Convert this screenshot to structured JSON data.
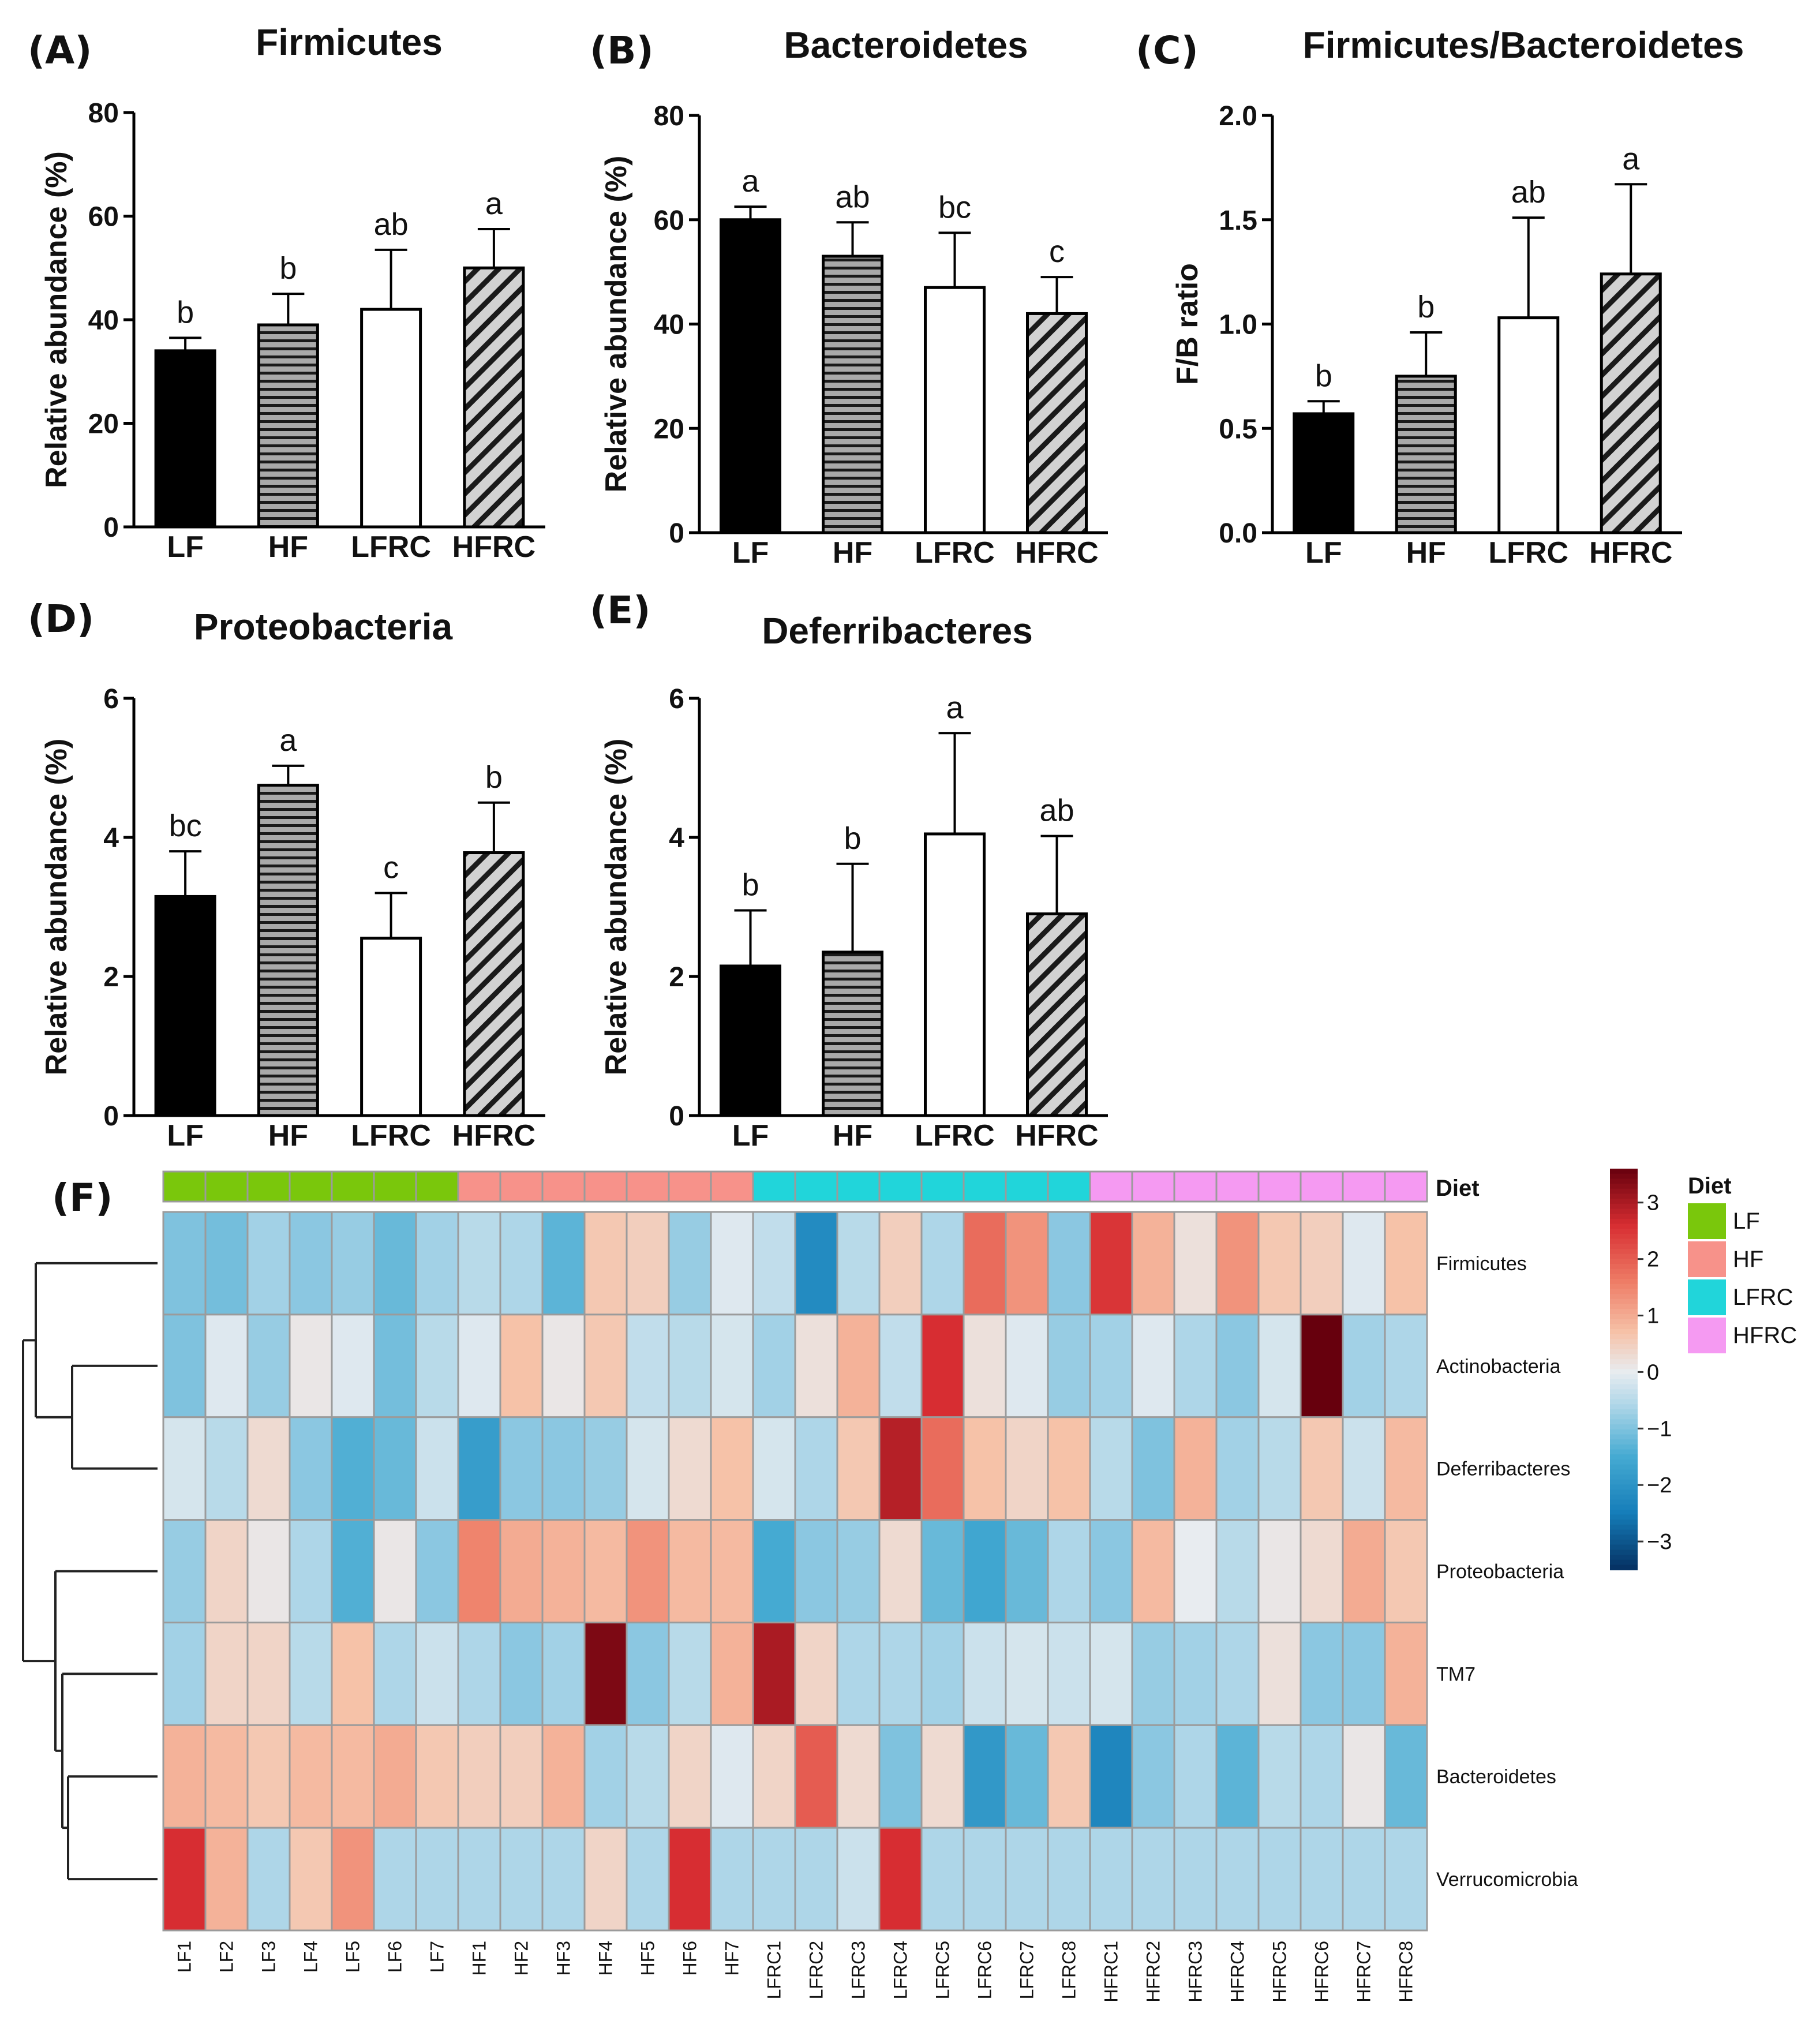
{
  "chart_data": [
    {
      "type": "bar",
      "panel": "(A)",
      "title": "Firmicutes",
      "ylabel": "Relative abundance (%)",
      "ylim": [
        0,
        80
      ],
      "yticks": [
        "0",
        "20",
        "40",
        "60",
        "80"
      ],
      "categories": [
        "LF",
        "HF",
        "LFRC",
        "HFRC"
      ],
      "values": [
        34,
        39,
        42,
        50
      ],
      "errors": [
        2.5,
        6,
        11.5,
        7.5
      ],
      "letters": [
        "b",
        "b",
        "ab",
        "a"
      ]
    },
    {
      "type": "bar",
      "panel": "(B)",
      "title": "Bacteroidetes",
      "ylabel": "Relative abundance (%)",
      "ylim": [
        0,
        80
      ],
      "yticks": [
        "0",
        "20",
        "40",
        "60",
        "80"
      ],
      "categories": [
        "LF",
        "HF",
        "LFRC",
        "HFRC"
      ],
      "values": [
        60,
        53,
        47,
        42
      ],
      "errors": [
        2.5,
        6.5,
        10.5,
        7
      ],
      "letters": [
        "a",
        "ab",
        "bc",
        "c"
      ]
    },
    {
      "type": "bar",
      "panel": "(C)",
      "title": "Firmicutes/Bacteroidetes",
      "ylabel": "F/B ratio",
      "ylim": [
        0,
        2.0
      ],
      "yticks": [
        "0.0",
        "0.5",
        "1.0",
        "1.5",
        "2.0"
      ],
      "categories": [
        "LF",
        "HF",
        "LFRC",
        "HFRC"
      ],
      "values": [
        0.57,
        0.75,
        1.03,
        1.24
      ],
      "errors": [
        0.06,
        0.21,
        0.48,
        0.43
      ],
      "letters": [
        "b",
        "b",
        "ab",
        "a"
      ]
    },
    {
      "type": "bar",
      "panel": "(D)",
      "title": "Proteobacteria",
      "ylabel": "Relative abundance (%)",
      "ylim": [
        0,
        6
      ],
      "yticks": [
        "0",
        "2",
        "4",
        "6"
      ],
      "categories": [
        "LF",
        "HF",
        "LFRC",
        "HFRC"
      ],
      "values": [
        3.15,
        4.75,
        2.55,
        3.78
      ],
      "errors": [
        0.65,
        0.28,
        0.65,
        0.72
      ],
      "letters": [
        "bc",
        "a",
        "c",
        "b"
      ]
    },
    {
      "type": "bar",
      "panel": "(E)",
      "title": "Deferribacteres",
      "ylabel": "Relative abundance (%)",
      "ylim": [
        0,
        6
      ],
      "yticks": [
        "0",
        "2",
        "4",
        "6"
      ],
      "categories": [
        "LF",
        "HF",
        "LFRC",
        "HFRC"
      ],
      "values": [
        2.15,
        2.35,
        4.05,
        2.9
      ],
      "errors": [
        0.8,
        1.27,
        1.45,
        1.12
      ],
      "letters": [
        "b",
        "b",
        "a",
        "ab"
      ]
    },
    {
      "type": "heatmap",
      "panel": "(F)",
      "annotation_title": "Diet",
      "columns": [
        "LF1",
        "LF2",
        "LF3",
        "LF4",
        "LF5",
        "LF6",
        "LF7",
        "HF1",
        "HF2",
        "HF3",
        "HF4",
        "HF5",
        "HF6",
        "HF7",
        "LFRC1",
        "LFRC2",
        "LFRC3",
        "LFRC4",
        "LFRC5",
        "LFRC6",
        "LFRC7",
        "LFRC8",
        "HFRC1",
        "HFRC2",
        "HFRC3",
        "HFRC4",
        "HFRC5",
        "HFRC6",
        "HFRC7",
        "HFRC8"
      ],
      "column_groups": [
        "LF",
        "LF",
        "LF",
        "LF",
        "LF",
        "LF",
        "LF",
        "HF",
        "HF",
        "HF",
        "HF",
        "HF",
        "HF",
        "HF",
        "LFRC",
        "LFRC",
        "LFRC",
        "LFRC",
        "LFRC",
        "LFRC",
        "LFRC",
        "LFRC",
        "HFRC",
        "HFRC",
        "HFRC",
        "HFRC",
        "HFRC",
        "HFRC",
        "HFRC",
        "HFRC"
      ],
      "rows": [
        "Firmicutes",
        "Actinobacteria",
        "Deferribacteres",
        "Proteobacteria",
        "TM7",
        "Bacteroidetes",
        "Verrucomicrobia"
      ],
      "values": [
        [
          -1.0,
          -1.1,
          -0.7,
          -0.9,
          -0.8,
          -1.2,
          -0.7,
          -0.5,
          -0.6,
          -1.3,
          0.6,
          0.5,
          -0.8,
          -0.1,
          -0.4,
          -2.2,
          -0.5,
          0.5,
          -0.6,
          1.8,
          1.3,
          -0.9,
          2.5,
          0.9,
          0.2,
          1.3,
          0.6,
          0.5,
          -0.1,
          0.7
        ],
        [
          -1.0,
          -0.1,
          -0.8,
          0.1,
          -0.1,
          -1.1,
          -0.5,
          -0.1,
          0.7,
          0.1,
          0.6,
          -0.4,
          -0.5,
          -0.2,
          -0.7,
          0.2,
          0.9,
          -0.4,
          2.6,
          0.2,
          -0.1,
          -0.8,
          -0.7,
          -0.1,
          -0.6,
          -0.9,
          -0.2,
          3.6,
          -0.7,
          -0.6
        ],
        [
          -0.2,
          -0.5,
          0.3,
          -0.9,
          -1.4,
          -1.2,
          -0.3,
          -1.8,
          -0.9,
          -0.9,
          -0.8,
          -0.2,
          0.3,
          0.7,
          -0.2,
          -0.6,
          0.6,
          2.9,
          1.8,
          0.7,
          0.4,
          0.7,
          -0.5,
          -1.0,
          0.9,
          -0.7,
          -0.5,
          0.6,
          -0.3,
          0.8
        ],
        [
          -0.8,
          0.4,
          0.1,
          -0.6,
          -1.4,
          0.1,
          -0.9,
          1.5,
          1.0,
          0.9,
          0.8,
          1.3,
          0.8,
          0.8,
          -1.5,
          -0.9,
          -0.8,
          0.3,
          -1.2,
          -1.6,
          -1.2,
          -0.6,
          -0.9,
          0.8,
          0.0,
          -0.5,
          0.1,
          0.3,
          1.0,
          0.6
        ],
        [
          -0.7,
          0.4,
          0.4,
          -0.5,
          0.7,
          -0.6,
          -0.3,
          -0.6,
          -0.9,
          -0.7,
          3.4,
          -0.9,
          -0.5,
          0.9,
          3.0,
          0.4,
          -0.6,
          -0.6,
          -0.7,
          -0.3,
          -0.2,
          -0.3,
          -0.2,
          -0.8,
          -0.7,
          -0.6,
          0.2,
          -0.9,
          -0.9,
          0.9
        ],
        [
          0.9,
          0.8,
          0.6,
          0.8,
          0.8,
          1.0,
          0.6,
          0.5,
          0.5,
          0.9,
          -0.7,
          -0.5,
          0.4,
          -0.1,
          0.4,
          2.0,
          0.3,
          -1.0,
          0.3,
          -1.9,
          -1.2,
          0.6,
          -2.3,
          -0.9,
          -0.6,
          -1.3,
          -0.5,
          -0.6,
          0.1,
          -1.2
        ],
        [
          2.6,
          0.9,
          -0.6,
          0.6,
          1.3,
          -0.6,
          -0.6,
          -0.6,
          -0.6,
          -0.6,
          0.4,
          -0.6,
          2.6,
          -0.6,
          -0.6,
          -0.6,
          -0.3,
          2.6,
          -0.6,
          -0.6,
          -0.6,
          -0.6,
          -0.6,
          -0.6,
          -0.6,
          -0.6,
          -0.6,
          -0.6,
          -0.6,
          -0.6
        ]
      ],
      "color_scale": {
        "min": -3.5,
        "max": 3.6,
        "ticks": [
          "3",
          "2",
          "1",
          "0",
          "−1",
          "−2",
          "−3"
        ]
      },
      "legend": {
        "title": "Diet",
        "items": [
          {
            "label": "LF",
            "color": "#7ac70c"
          },
          {
            "label": "HF",
            "color": "#f7928a"
          },
          {
            "label": "LFRC",
            "color": "#21d5da"
          },
          {
            "label": "HFRC",
            "color": "#f59af2"
          }
        ]
      }
    }
  ]
}
